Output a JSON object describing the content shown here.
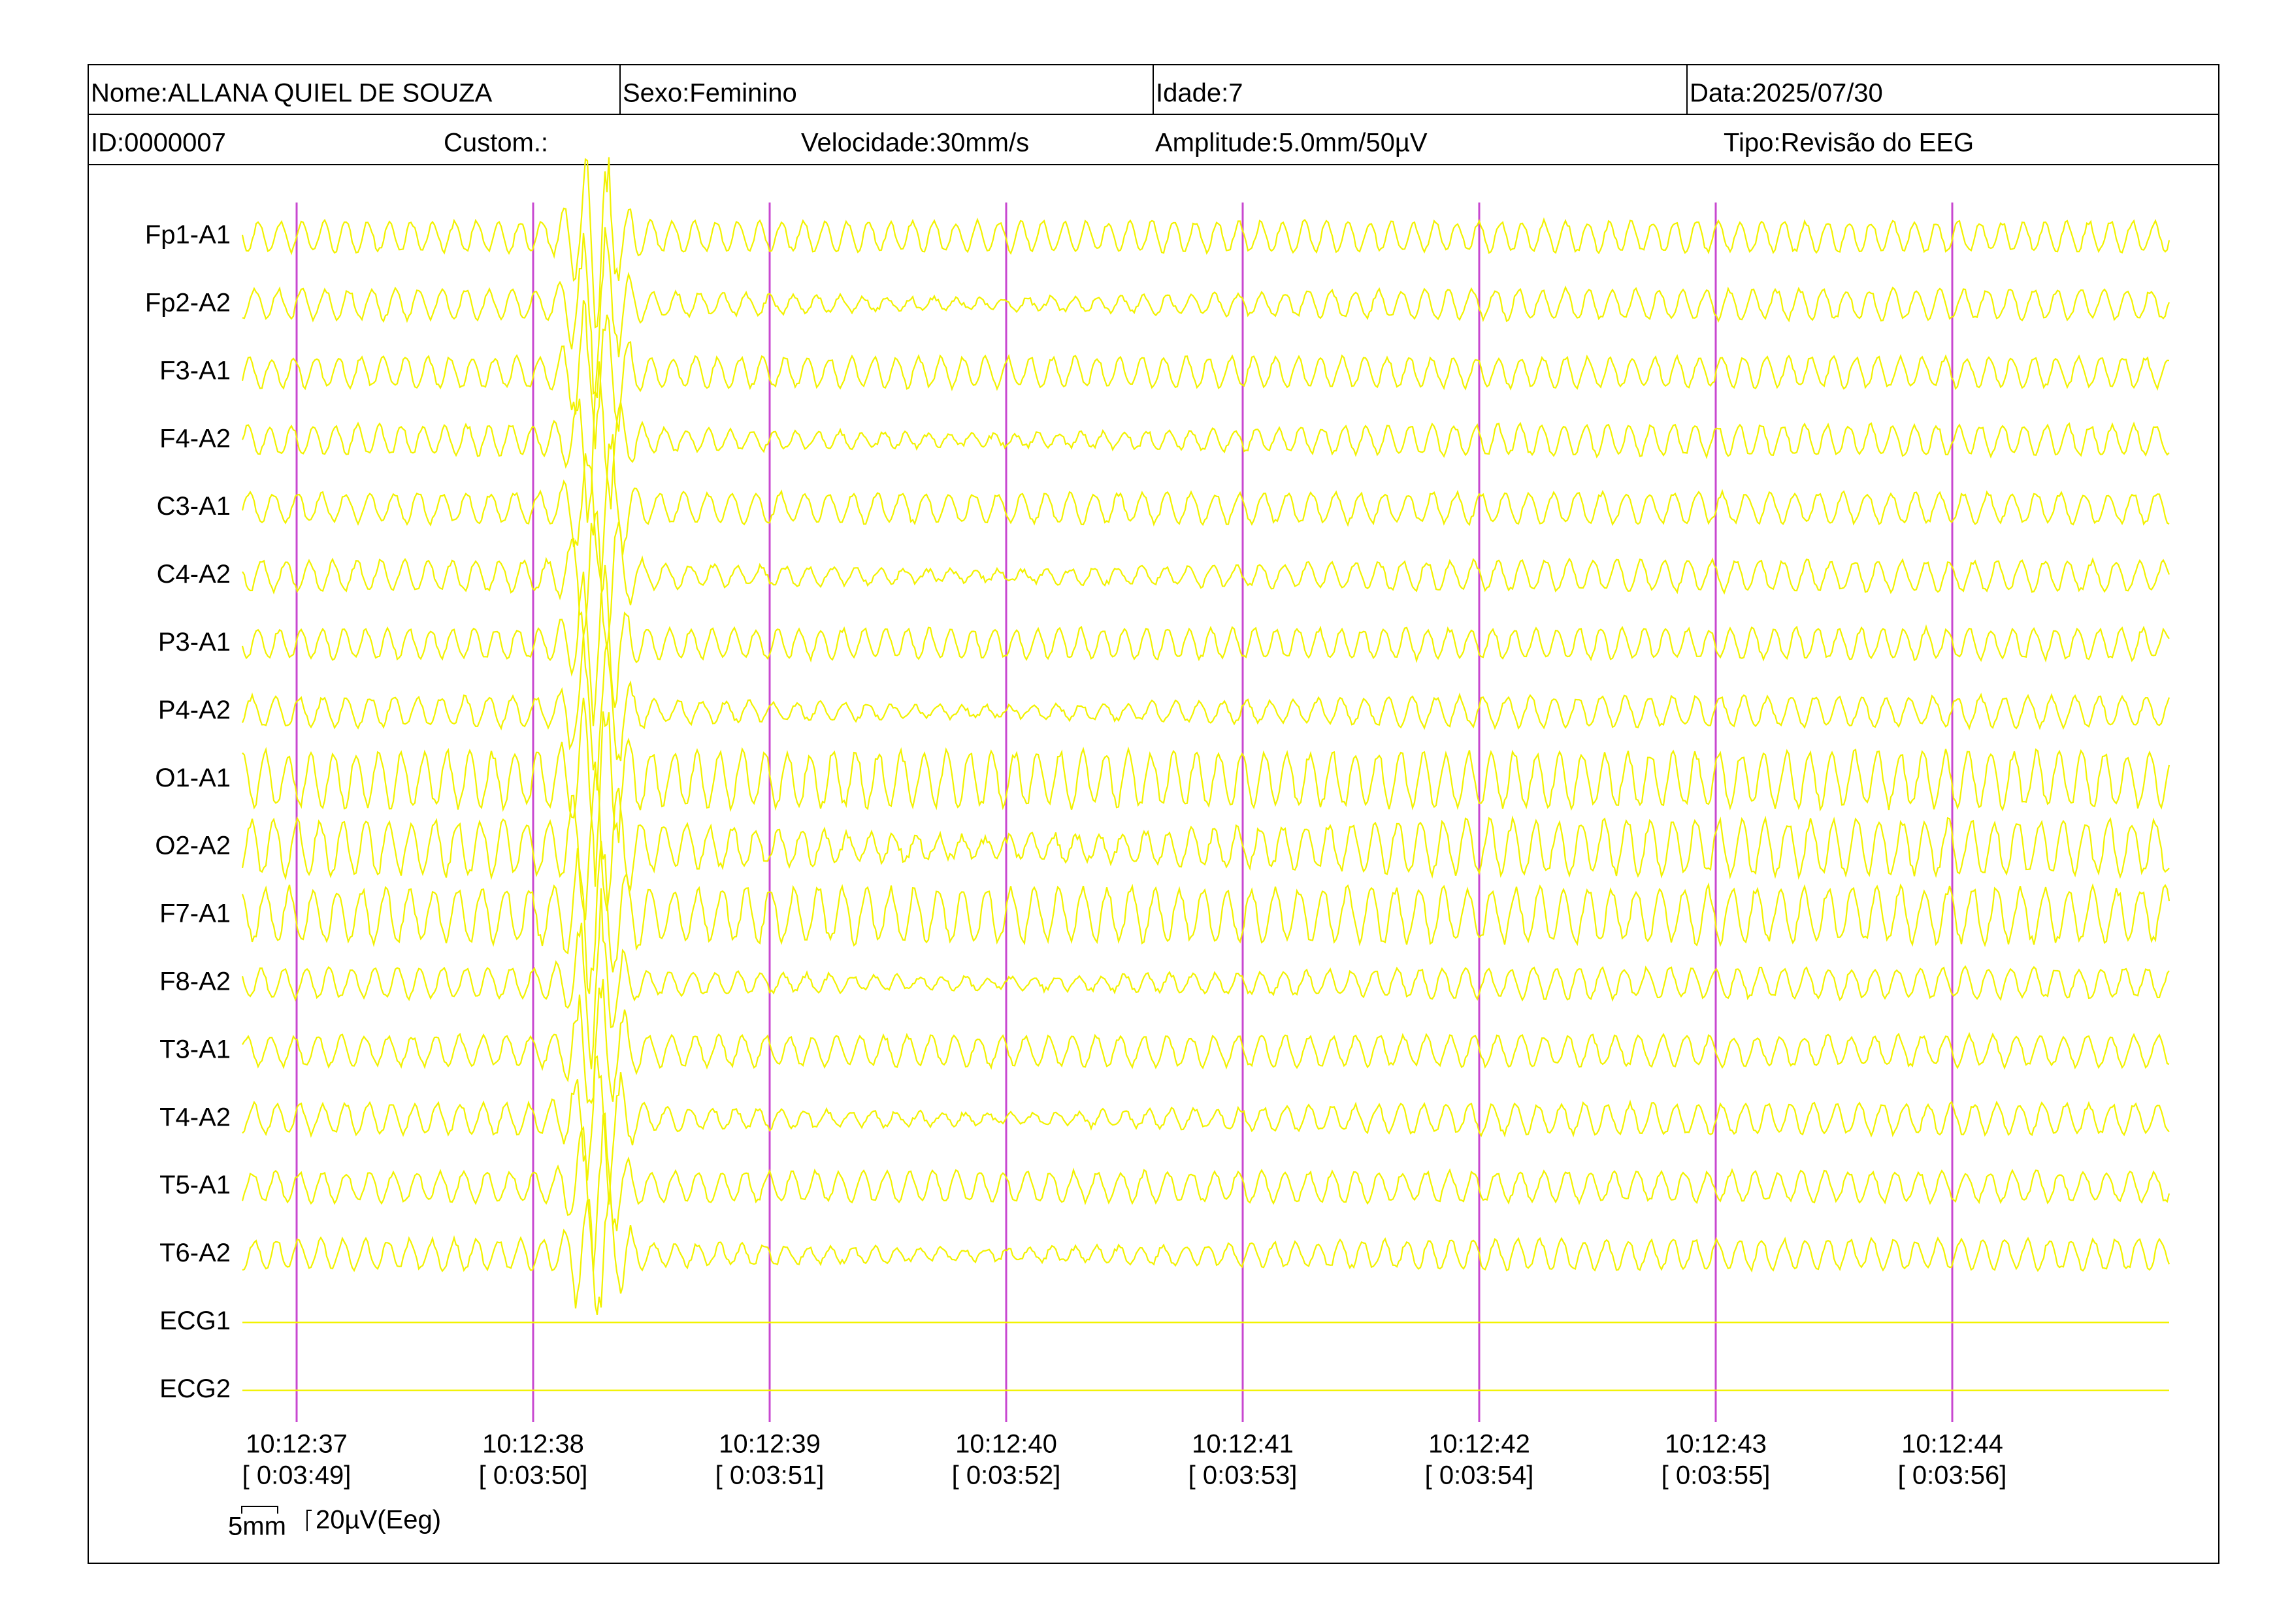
{
  "header": {
    "row1": [
      "Nome:ALLANA QUIEL DE SOUZA",
      "Sexo:Feminino",
      "Idade:7",
      "Data:2025/07/30"
    ],
    "row2": [
      "ID:0000007",
      "Custom.:",
      "Velocidade:30mm/s",
      "Amplitude:5.0mm/50µV",
      "Tipo:Revisão do EEG"
    ]
  },
  "channels": [
    "Fp1-A1",
    "Fp2-A2",
    "F3-A1",
    "F4-A2",
    "C3-A1",
    "C4-A2",
    "P3-A1",
    "P4-A2",
    "O1-A1",
    "O2-A2",
    "F7-A1",
    "F8-A2",
    "T3-A1",
    "T4-A2",
    "T5-A1",
    "T6-A2",
    "ECG1",
    "ECG2"
  ],
  "timeline": [
    {
      "time": "10:12:37",
      "elapsed": "[ 0:03:49]"
    },
    {
      "time": "10:12:38",
      "elapsed": "[ 0:03:50]"
    },
    {
      "time": "10:12:39",
      "elapsed": "[ 0:03:51]"
    },
    {
      "time": "10:12:40",
      "elapsed": "[ 0:03:52]"
    },
    {
      "time": "10:12:41",
      "elapsed": "[ 0:03:53]"
    },
    {
      "time": "10:12:42",
      "elapsed": "[ 0:03:54]"
    },
    {
      "time": "10:12:43",
      "elapsed": "[ 0:03:55]"
    },
    {
      "time": "10:12:44",
      "elapsed": "[ 0:03:56]"
    }
  ],
  "scale": {
    "horizontal": "5mm",
    "vertical": "20µV(Eeg)"
  }
}
